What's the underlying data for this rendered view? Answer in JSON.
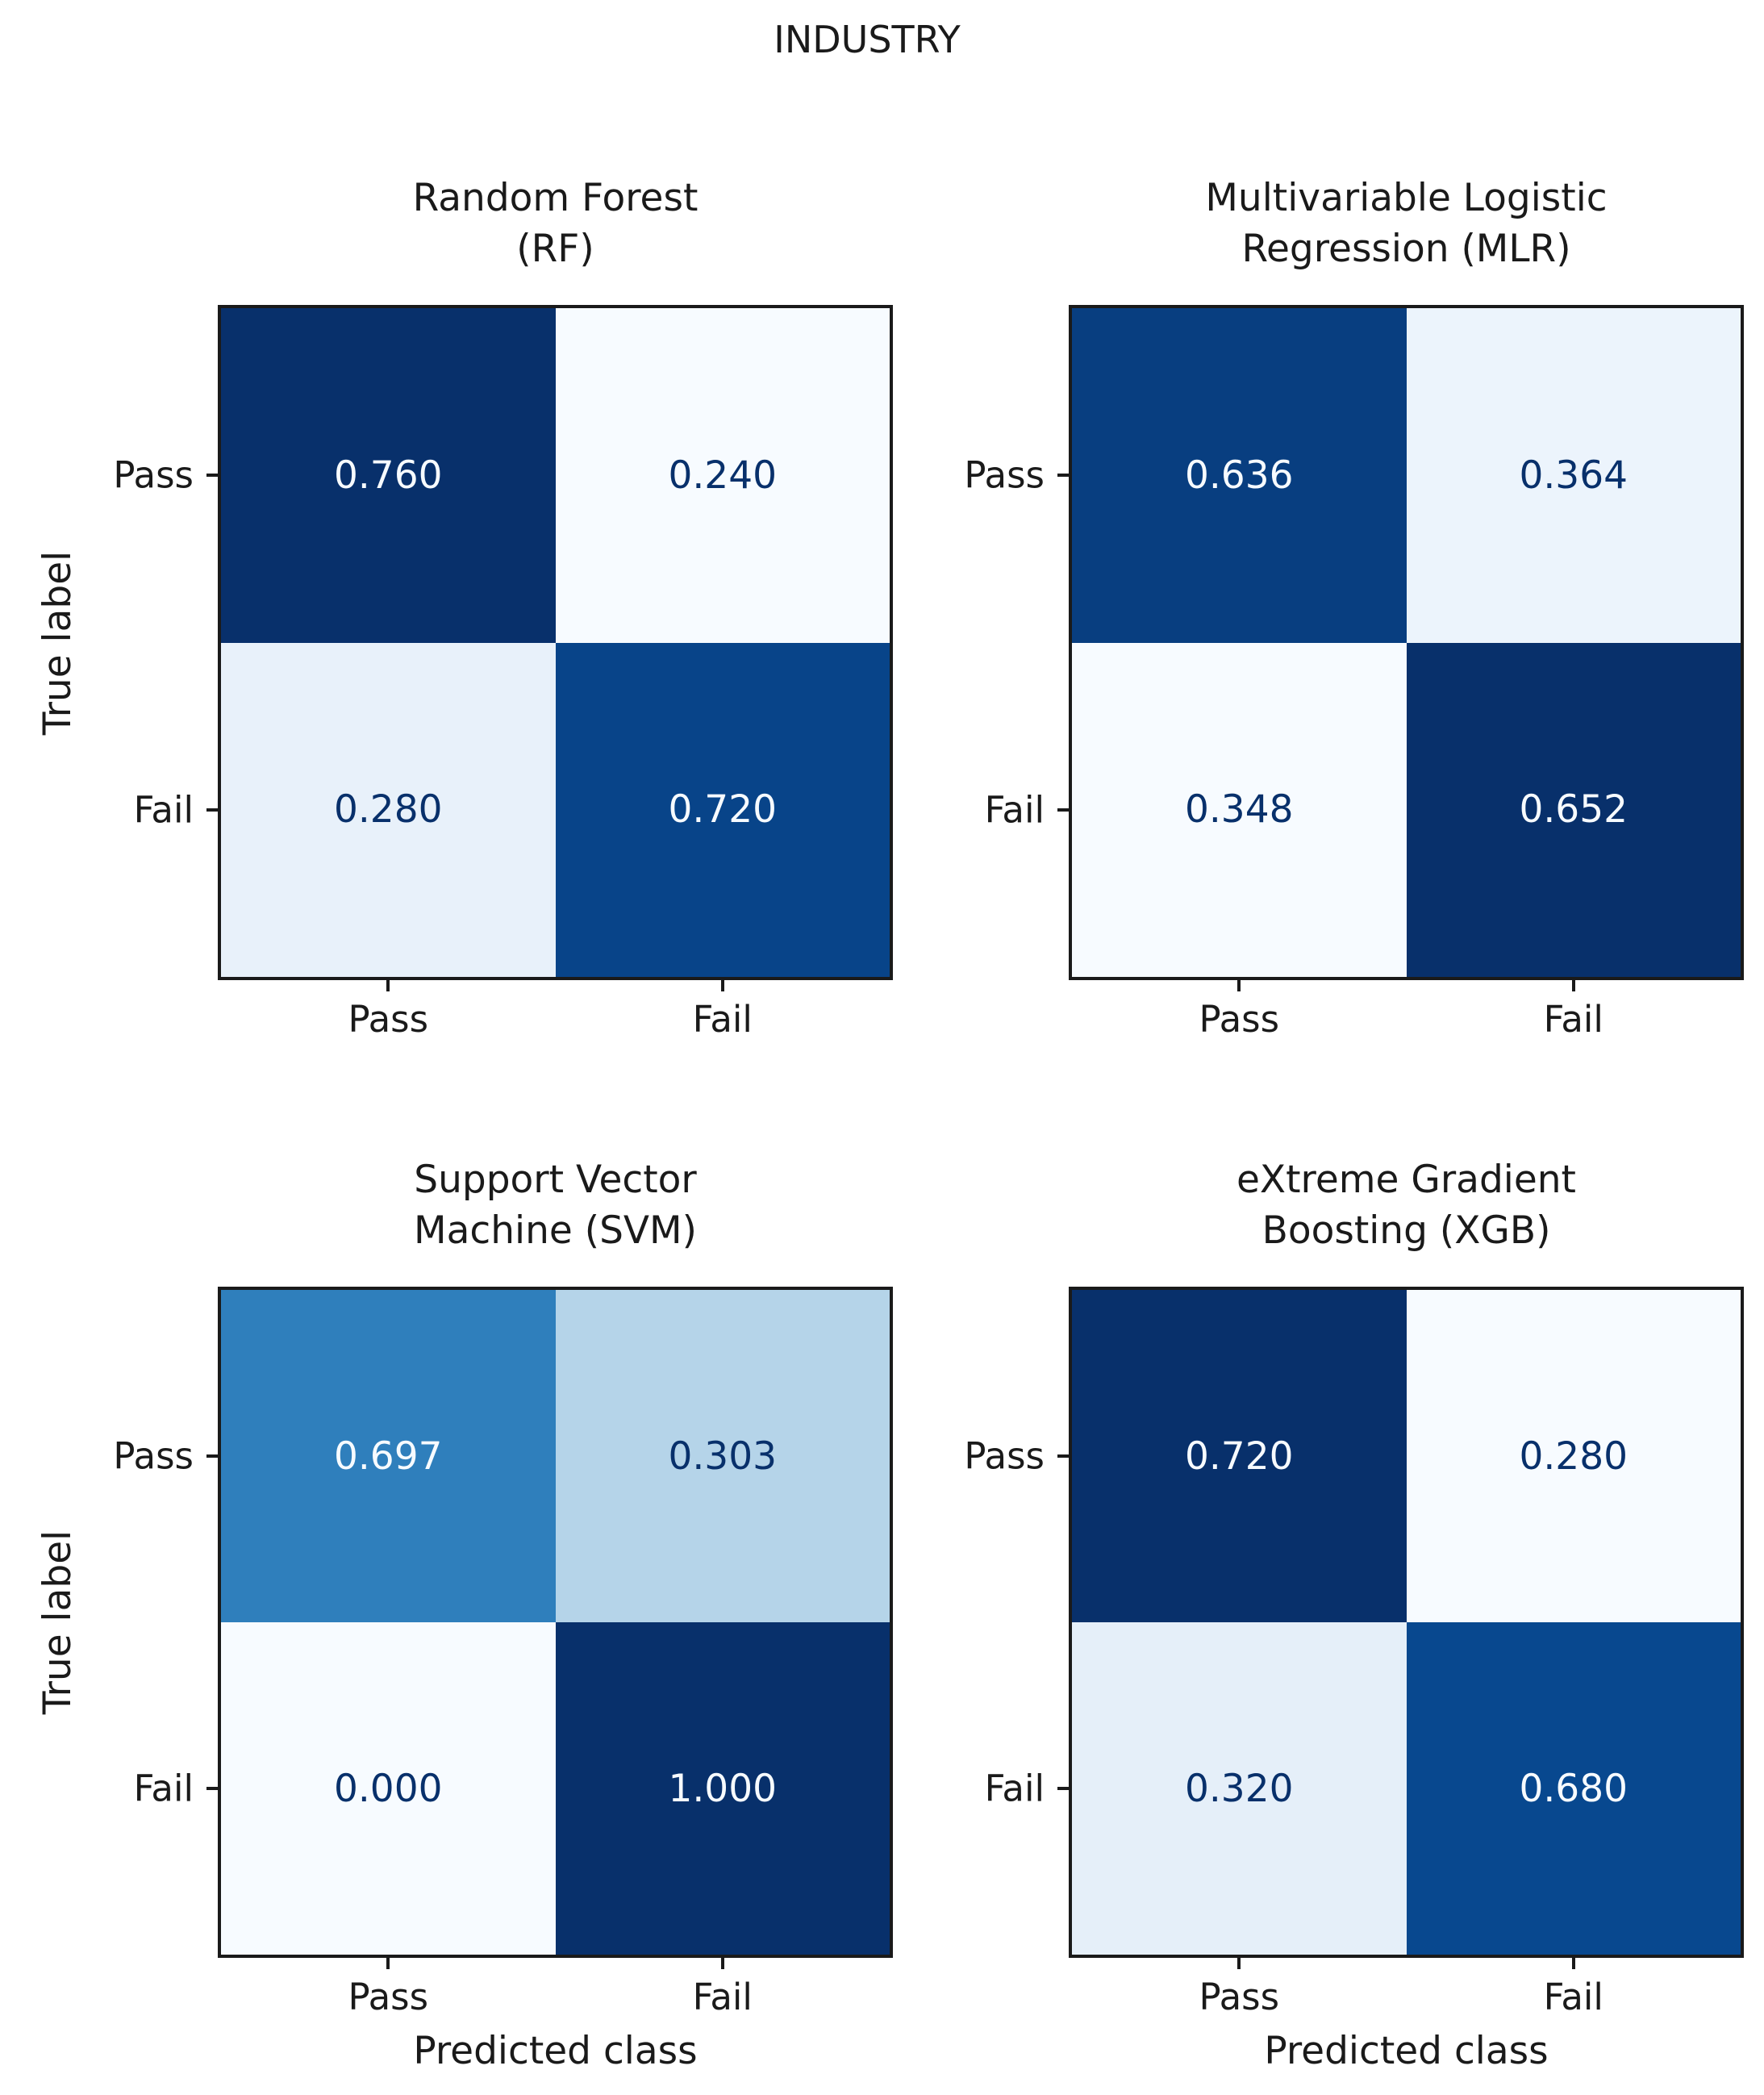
{
  "figure": {
    "title": "INDUSTRY",
    "background": "#ffffff",
    "spine_color": "#1a1a1a",
    "text_color": "#1a1a1a"
  },
  "chart_data": [
    {
      "type": "heatmap",
      "title": "Random Forest (RF)",
      "title_lines": [
        "Random Forest",
        "(RF)"
      ],
      "x": [
        "Pass",
        "Fail"
      ],
      "y": [
        "Pass",
        "Fail"
      ],
      "ylabel": "True label",
      "colormap": "Blues",
      "values": [
        [
          0.76,
          0.24
        ],
        [
          0.28,
          0.72
        ]
      ],
      "cells": [
        [
          {
            "label": "0.760",
            "bg": "#08306b",
            "fg": "#f7fbff"
          },
          {
            "label": "0.240",
            "bg": "#f7fbff",
            "fg": "#08306b"
          }
        ],
        [
          {
            "label": "0.280",
            "bg": "#e8f1fa",
            "fg": "#08306b"
          },
          {
            "label": "0.720",
            "bg": "#084489",
            "fg": "#f7fbff"
          }
        ]
      ]
    },
    {
      "type": "heatmap",
      "title": "Multivariable Logistic Regression (MLR)",
      "title_lines": [
        "Multivariable Logistic",
        "Regression (MLR)"
      ],
      "x": [
        "Pass",
        "Fail"
      ],
      "y": [
        "Pass",
        "Fail"
      ],
      "colormap": "Blues",
      "values": [
        [
          0.636,
          0.364
        ],
        [
          0.348,
          0.652
        ]
      ],
      "cells": [
        [
          {
            "label": "0.636",
            "bg": "#083e80",
            "fg": "#f7fbff"
          },
          {
            "label": "0.364",
            "bg": "#ecf4fc",
            "fg": "#08306b"
          }
        ],
        [
          {
            "label": "0.348",
            "bg": "#f7fbff",
            "fg": "#08306b"
          },
          {
            "label": "0.652",
            "bg": "#08306b",
            "fg": "#f7fbff"
          }
        ]
      ]
    },
    {
      "type": "heatmap",
      "title": "Support Vector Machine (SVM)",
      "title_lines": [
        "Support Vector",
        "Machine (SVM)"
      ],
      "x": [
        "Pass",
        "Fail"
      ],
      "y": [
        "Pass",
        "Fail"
      ],
      "xlabel": "Predicted class",
      "ylabel": "True label",
      "colormap": "Blues",
      "values": [
        [
          0.697,
          0.303
        ],
        [
          0.0,
          1.0
        ]
      ],
      "cells": [
        [
          {
            "label": "0.697",
            "bg": "#2f7fbc",
            "fg": "#f7fbff"
          },
          {
            "label": "0.303",
            "bg": "#b5d4e9",
            "fg": "#08306b"
          }
        ],
        [
          {
            "label": "0.000",
            "bg": "#f7fbff",
            "fg": "#08306b"
          },
          {
            "label": "1.000",
            "bg": "#08306b",
            "fg": "#f7fbff"
          }
        ]
      ]
    },
    {
      "type": "heatmap",
      "title": "eXtreme Gradient Boosting (XGB)",
      "title_lines": [
        "eXtreme Gradient",
        "Boosting (XGB)"
      ],
      "x": [
        "Pass",
        "Fail"
      ],
      "y": [
        "Pass",
        "Fail"
      ],
      "xlabel": "Predicted class",
      "colormap": "Blues",
      "values": [
        [
          0.72,
          0.28
        ],
        [
          0.32,
          0.68
        ]
      ],
      "cells": [
        [
          {
            "label": "0.720",
            "bg": "#08306b",
            "fg": "#f7fbff"
          },
          {
            "label": "0.280",
            "bg": "#f7fbff",
            "fg": "#08306b"
          }
        ],
        [
          {
            "label": "0.320",
            "bg": "#e5eff9",
            "fg": "#08306b"
          },
          {
            "label": "0.680",
            "bg": "#08488f",
            "fg": "#f7fbff"
          }
        ]
      ]
    }
  ]
}
